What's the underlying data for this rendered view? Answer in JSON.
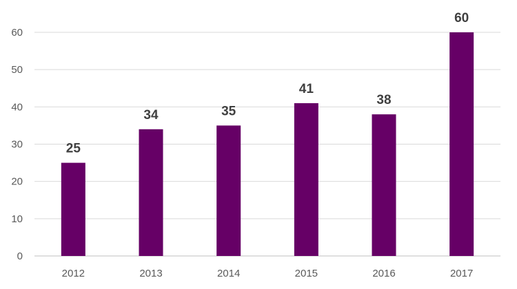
{
  "chart_data": {
    "type": "bar",
    "title": "",
    "xlabel": "",
    "ylabel": "",
    "categories": [
      "2012",
      "2013",
      "2014",
      "2015",
      "2016",
      "2017"
    ],
    "values": [
      25,
      34,
      35,
      41,
      38,
      60
    ],
    "ylim": [
      0,
      60
    ],
    "yticks": [
      0,
      10,
      20,
      30,
      40,
      50,
      60
    ],
    "grid": true,
    "legend": "none",
    "bar_color": "#660066"
  }
}
